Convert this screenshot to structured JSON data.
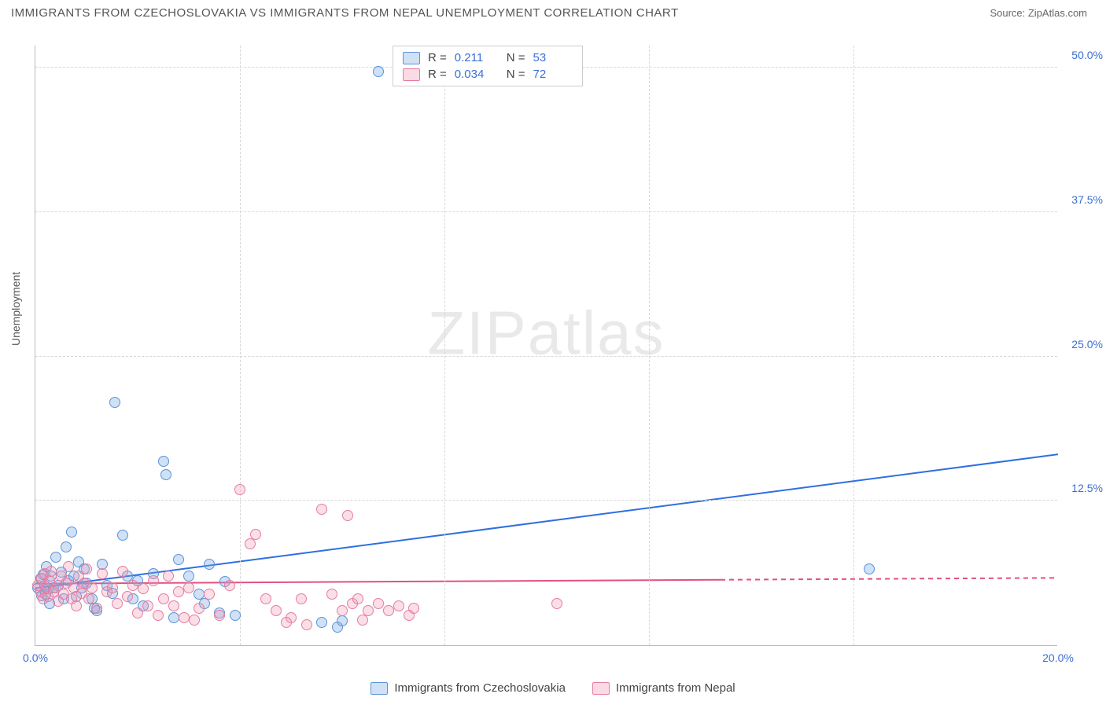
{
  "header": {
    "title": "IMMIGRANTS FROM CZECHOSLOVAKIA VS IMMIGRANTS FROM NEPAL UNEMPLOYMENT CORRELATION CHART",
    "source": "Source: ZipAtlas.com"
  },
  "watermark": {
    "bold": "ZIP",
    "light": "atlas"
  },
  "chart": {
    "type": "scatter",
    "ylabel": "Unemployment",
    "xlim": [
      0,
      20
    ],
    "ylim": [
      0,
      52
    ],
    "x_ticks": [
      {
        "v": 0,
        "label": "0.0%"
      },
      {
        "v": 20,
        "label": "20.0%"
      }
    ],
    "x_grid": [
      4,
      8,
      12,
      16
    ],
    "y_ticks": [
      {
        "v": 12.5,
        "label": "12.5%"
      },
      {
        "v": 25,
        "label": "25.0%"
      },
      {
        "v": 37.5,
        "label": "37.5%"
      },
      {
        "v": 50,
        "label": "50.0%"
      }
    ],
    "background_color": "#ffffff",
    "grid_color": "#d8d8d8",
    "marker_radius": 7,
    "series": [
      {
        "key": "a",
        "label": "Immigrants from Czechoslovakia",
        "fill": "rgba(120,170,230,0.35)",
        "stroke": "#5a93d8",
        "trend": {
          "color": "#2f6fe0",
          "width": 2,
          "y0": 5.0,
          "y1": 16.6,
          "solid_to_x": 20,
          "dash": false
        },
        "R": "0.211",
        "N": "53",
        "points": [
          [
            0.05,
            5.0
          ],
          [
            0.1,
            5.8
          ],
          [
            0.12,
            4.3
          ],
          [
            0.15,
            6.1
          ],
          [
            0.18,
            5.2
          ],
          [
            0.2,
            4.4
          ],
          [
            0.22,
            6.8
          ],
          [
            0.25,
            4.9
          ],
          [
            0.28,
            3.6
          ],
          [
            0.3,
            6.0
          ],
          [
            0.35,
            5.0
          ],
          [
            0.4,
            7.6
          ],
          [
            0.45,
            5.2
          ],
          [
            0.5,
            6.3
          ],
          [
            0.55,
            4.0
          ],
          [
            0.6,
            8.5
          ],
          [
            0.65,
            5.6
          ],
          [
            0.7,
            9.8
          ],
          [
            0.75,
            6.0
          ],
          [
            0.8,
            4.2
          ],
          [
            0.85,
            7.2
          ],
          [
            0.9,
            5.0
          ],
          [
            0.95,
            6.6
          ],
          [
            1.0,
            5.4
          ],
          [
            1.1,
            4.0
          ],
          [
            1.2,
            3.0
          ],
          [
            1.3,
            7.0
          ],
          [
            1.4,
            5.2
          ],
          [
            1.5,
            4.5
          ],
          [
            1.55,
            21.0
          ],
          [
            1.7,
            9.5
          ],
          [
            1.8,
            6.0
          ],
          [
            1.9,
            4.0
          ],
          [
            2.0,
            5.6
          ],
          [
            2.1,
            3.4
          ],
          [
            2.3,
            6.2
          ],
          [
            2.5,
            15.9
          ],
          [
            2.55,
            14.8
          ],
          [
            2.7,
            2.4
          ],
          [
            2.8,
            7.4
          ],
          [
            3.0,
            6.0
          ],
          [
            3.2,
            4.4
          ],
          [
            3.3,
            3.6
          ],
          [
            3.4,
            7.0
          ],
          [
            3.7,
            5.5
          ],
          [
            3.9,
            2.6
          ],
          [
            5.6,
            2.0
          ],
          [
            5.9,
            1.6
          ],
          [
            6.0,
            2.1
          ],
          [
            6.7,
            49.7
          ],
          [
            16.3,
            6.6
          ],
          [
            3.6,
            2.8
          ],
          [
            1.15,
            3.2
          ]
        ]
      },
      {
        "key": "b",
        "label": "Immigrants from Nepal",
        "fill": "rgba(240,150,175,0.3)",
        "stroke": "#e77ca0",
        "trend": {
          "color": "#e0527e",
          "width": 2,
          "y0": 5.4,
          "y1": 5.9,
          "solid_to_x": 13.4,
          "dash": true
        },
        "R": "0.034",
        "N": "72",
        "points": [
          [
            0.05,
            5.2
          ],
          [
            0.1,
            4.6
          ],
          [
            0.12,
            5.8
          ],
          [
            0.15,
            4.0
          ],
          [
            0.18,
            6.2
          ],
          [
            0.2,
            5.0
          ],
          [
            0.25,
            4.2
          ],
          [
            0.28,
            5.6
          ],
          [
            0.3,
            6.4
          ],
          [
            0.35,
            4.6
          ],
          [
            0.4,
            5.0
          ],
          [
            0.45,
            3.8
          ],
          [
            0.5,
            6.0
          ],
          [
            0.55,
            4.4
          ],
          [
            0.6,
            5.4
          ],
          [
            0.65,
            6.8
          ],
          [
            0.7,
            4.0
          ],
          [
            0.75,
            5.0
          ],
          [
            0.8,
            3.4
          ],
          [
            0.85,
            6.0
          ],
          [
            0.9,
            4.5
          ],
          [
            0.95,
            5.4
          ],
          [
            1.0,
            6.6
          ],
          [
            1.05,
            4.0
          ],
          [
            1.1,
            5.0
          ],
          [
            1.2,
            3.2
          ],
          [
            1.3,
            6.2
          ],
          [
            1.4,
            4.6
          ],
          [
            1.5,
            5.0
          ],
          [
            1.6,
            3.6
          ],
          [
            1.7,
            6.4
          ],
          [
            1.8,
            4.2
          ],
          [
            1.9,
            5.2
          ],
          [
            2.0,
            2.8
          ],
          [
            2.1,
            4.9
          ],
          [
            2.2,
            3.4
          ],
          [
            2.3,
            5.6
          ],
          [
            2.4,
            2.6
          ],
          [
            2.5,
            4.0
          ],
          [
            2.6,
            6.0
          ],
          [
            2.7,
            3.4
          ],
          [
            2.8,
            4.6
          ],
          [
            2.9,
            2.4
          ],
          [
            3.0,
            5.0
          ],
          [
            3.2,
            3.2
          ],
          [
            3.4,
            4.4
          ],
          [
            3.6,
            2.6
          ],
          [
            3.8,
            5.2
          ],
          [
            4.0,
            13.5
          ],
          [
            4.2,
            8.8
          ],
          [
            4.3,
            9.6
          ],
          [
            4.5,
            4.0
          ],
          [
            4.7,
            3.0
          ],
          [
            5.0,
            2.4
          ],
          [
            5.2,
            4.0
          ],
          [
            5.3,
            1.8
          ],
          [
            5.6,
            11.8
          ],
          [
            5.8,
            4.4
          ],
          [
            6.0,
            3.0
          ],
          [
            6.1,
            11.2
          ],
          [
            6.2,
            3.6
          ],
          [
            6.3,
            4.0
          ],
          [
            6.5,
            3.0
          ],
          [
            6.7,
            3.6
          ],
          [
            6.9,
            3.0
          ],
          [
            7.1,
            3.4
          ],
          [
            7.3,
            2.6
          ],
          [
            7.4,
            3.2
          ],
          [
            10.2,
            3.6
          ],
          [
            6.4,
            2.2
          ],
          [
            4.9,
            2.0
          ],
          [
            3.1,
            2.2
          ]
        ]
      }
    ]
  },
  "legend_box": {
    "rows": [
      {
        "swatch": "a",
        "R_label": "R =",
        "R_val": "0.211",
        "N_label": "N =",
        "N_val": "53"
      },
      {
        "swatch": "b",
        "R_label": "R =",
        "R_val": "0.034",
        "N_label": "N =",
        "N_val": "72"
      }
    ]
  },
  "bottom_legend": [
    {
      "swatch": "a",
      "label": "Immigrants from Czechoslovakia"
    },
    {
      "swatch": "b",
      "label": "Immigrants from Nepal"
    }
  ]
}
